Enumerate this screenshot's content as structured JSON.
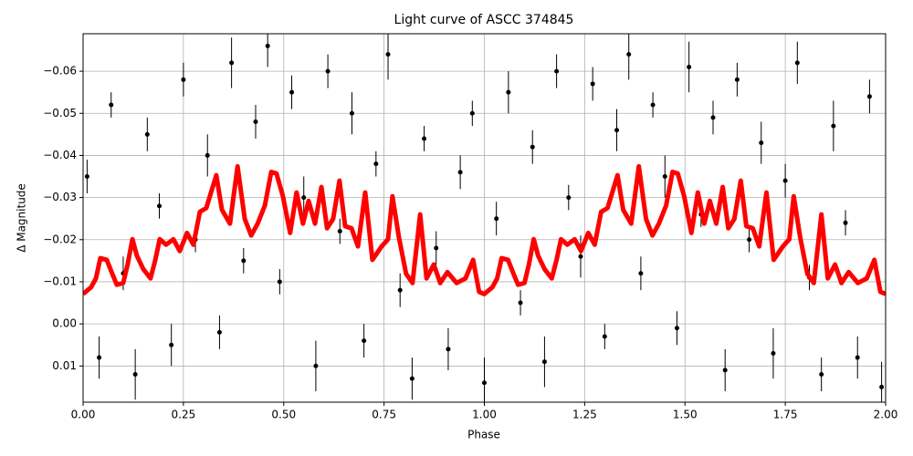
{
  "chart_data": {
    "type": "scatter",
    "title": "Light curve of ASCC 374845",
    "xlabel": "Phase",
    "ylabel": "Δ Magnitude",
    "xlim": [
      0,
      2
    ],
    "ylim": [
      0.0186,
      -0.0689
    ],
    "grid": true,
    "xticks": [
      {
        "value": 0,
        "label": "0.00"
      },
      {
        "value": 0.25,
        "label": "0.25"
      },
      {
        "value": 0.5,
        "label": "0.50"
      },
      {
        "value": 0.75,
        "label": "0.75"
      },
      {
        "value": 1,
        "label": "1.00"
      },
      {
        "value": 1.25,
        "label": "1.25"
      },
      {
        "value": 1.5,
        "label": "1.50"
      },
      {
        "value": 1.75,
        "label": "1.75"
      },
      {
        "value": 2,
        "label": "2.00"
      }
    ],
    "yticks": [
      {
        "value": 0.01,
        "label": "0.01"
      },
      {
        "value": 0,
        "label": "0.00"
      },
      {
        "value": -0.01,
        "label": "−0.01"
      },
      {
        "value": -0.02,
        "label": "−0.02"
      },
      {
        "value": -0.03,
        "label": "−0.03"
      },
      {
        "value": -0.04,
        "label": "−0.04"
      },
      {
        "value": -0.05,
        "label": "−0.05"
      },
      {
        "value": -0.06,
        "label": "−0.06"
      }
    ],
    "series": [
      {
        "type": "errorbar",
        "color": "#000000",
        "x": [
          0.01,
          0.04,
          0.07,
          0.1,
          0.13,
          0.16,
          0.19,
          0.22,
          0.25,
          0.28,
          0.31,
          0.34,
          0.37,
          0.4,
          0.43,
          0.46,
          0.49,
          0.52,
          0.55,
          0.58,
          0.61,
          0.64,
          0.67,
          0.7,
          0.73,
          0.76,
          0.79,
          0.82,
          0.85,
          0.88,
          0.91,
          0.94,
          0.97,
          1.0,
          1.03,
          1.06,
          1.09,
          1.12,
          1.15,
          1.18,
          1.21,
          1.24,
          1.27,
          1.3,
          1.33,
          1.36,
          1.39,
          1.42,
          1.45,
          1.48,
          1.51,
          1.54,
          1.57,
          1.6,
          1.63,
          1.66,
          1.69,
          1.72,
          1.75,
          1.78,
          1.81,
          1.84,
          1.87,
          1.9,
          1.93,
          1.96,
          1.99
        ],
        "values": [
          -0.035,
          0.008,
          -0.052,
          -0.012,
          0.012,
          -0.045,
          -0.028,
          0.005,
          -0.058,
          -0.02,
          -0.04,
          0.002,
          -0.062,
          -0.015,
          -0.048,
          -0.066,
          -0.01,
          -0.055,
          -0.03,
          0.01,
          -0.06,
          -0.022,
          -0.05,
          0.004,
          -0.038,
          -0.064,
          -0.008,
          0.013,
          -0.044,
          -0.018,
          0.006,
          -0.036,
          -0.05,
          0.014,
          -0.025,
          -0.055,
          -0.005,
          -0.042,
          0.009,
          -0.06,
          -0.03,
          -0.016,
          -0.057,
          0.003,
          -0.046,
          -0.064,
          -0.012,
          -0.052,
          -0.035,
          0.001,
          -0.061,
          -0.026,
          -0.049,
          0.011,
          -0.058,
          -0.02,
          -0.043,
          0.007,
          -0.034,
          -0.062,
          -0.011,
          0.012,
          -0.047,
          -0.024,
          0.008,
          -0.054,
          0.015
        ],
        "errors": [
          0.004,
          0.005,
          0.003,
          0.004,
          0.006,
          0.004,
          0.003,
          0.005,
          0.004,
          0.003,
          0.005,
          0.004,
          0.006,
          0.003,
          0.004,
          0.005,
          0.003,
          0.004,
          0.005,
          0.006,
          0.004,
          0.003,
          0.005,
          0.004,
          0.003,
          0.006,
          0.004,
          0.005,
          0.003,
          0.004,
          0.005,
          0.004,
          0.003,
          0.006,
          0.004,
          0.005,
          0.003,
          0.004,
          0.006,
          0.004,
          0.003,
          0.005,
          0.004,
          0.003,
          0.005,
          0.006,
          0.004,
          0.003,
          0.005,
          0.004,
          0.006,
          0.003,
          0.004,
          0.005,
          0.004,
          0.003,
          0.005,
          0.006,
          0.004,
          0.005,
          0.003,
          0.004,
          0.006,
          0.003,
          0.005,
          0.004,
          0.006
        ]
      },
      {
        "type": "line",
        "color": "#ff0000",
        "x": [
          0.0,
          0.02,
          0.032,
          0.043,
          0.059,
          0.071,
          0.084,
          0.1,
          0.111,
          0.123,
          0.134,
          0.15,
          0.168,
          0.18,
          0.191,
          0.207,
          0.225,
          0.241,
          0.259,
          0.275,
          0.291,
          0.307,
          0.332,
          0.346,
          0.366,
          0.385,
          0.403,
          0.419,
          0.435,
          0.453,
          0.469,
          0.482,
          0.498,
          0.516,
          0.532,
          0.548,
          0.562,
          0.578,
          0.594,
          0.608,
          0.623,
          0.639,
          0.653,
          0.669,
          0.685,
          0.703,
          0.721,
          0.744,
          0.76,
          0.771,
          0.787,
          0.805,
          0.821,
          0.84,
          0.856,
          0.874,
          0.89,
          0.908,
          0.931,
          0.953,
          0.972,
          0.987,
          0.999,
          1.0,
          1.02,
          1.032,
          1.043,
          1.059,
          1.071,
          1.084,
          1.1,
          1.111,
          1.123,
          1.134,
          1.15,
          1.168,
          1.18,
          1.191,
          1.207,
          1.225,
          1.241,
          1.259,
          1.275,
          1.291,
          1.307,
          1.332,
          1.346,
          1.366,
          1.385,
          1.403,
          1.419,
          1.435,
          1.453,
          1.469,
          1.482,
          1.498,
          1.516,
          1.532,
          1.548,
          1.562,
          1.578,
          1.594,
          1.608,
          1.623,
          1.639,
          1.653,
          1.669,
          1.685,
          1.703,
          1.721,
          1.744,
          1.76,
          1.771,
          1.787,
          1.805,
          1.821,
          1.84,
          1.856,
          1.874,
          1.89,
          1.908,
          1.931,
          1.953,
          1.972,
          1.987,
          2.0
        ],
        "values": [
          -0.0071,
          -0.0087,
          -0.0108,
          -0.0156,
          -0.0152,
          -0.0123,
          -0.0093,
          -0.0097,
          -0.0141,
          -0.0201,
          -0.0162,
          -0.013,
          -0.0108,
          -0.0152,
          -0.0201,
          -0.0188,
          -0.0201,
          -0.0173,
          -0.0216,
          -0.0188,
          -0.0266,
          -0.0275,
          -0.0353,
          -0.0271,
          -0.0238,
          -0.0374,
          -0.0249,
          -0.021,
          -0.0238,
          -0.0281,
          -0.0361,
          -0.0357,
          -0.0303,
          -0.0216,
          -0.0312,
          -0.0238,
          -0.0292,
          -0.0238,
          -0.0325,
          -0.0227,
          -0.0249,
          -0.034,
          -0.0232,
          -0.0227,
          -0.0184,
          -0.0312,
          -0.0152,
          -0.0184,
          -0.0201,
          -0.0303,
          -0.0206,
          -0.0119,
          -0.0097,
          -0.026,
          -0.0108,
          -0.0141,
          -0.0097,
          -0.0123,
          -0.0097,
          -0.0108,
          -0.0152,
          -0.0076,
          -0.0071,
          -0.0071,
          -0.0087,
          -0.0108,
          -0.0156,
          -0.0152,
          -0.0123,
          -0.0093,
          -0.0097,
          -0.0141,
          -0.0201,
          -0.0162,
          -0.013,
          -0.0108,
          -0.0152,
          -0.0201,
          -0.0188,
          -0.0201,
          -0.0173,
          -0.0216,
          -0.0188,
          -0.0266,
          -0.0275,
          -0.0353,
          -0.0271,
          -0.0238,
          -0.0374,
          -0.0249,
          -0.021,
          -0.0238,
          -0.0281,
          -0.0361,
          -0.0357,
          -0.0303,
          -0.0216,
          -0.0312,
          -0.0238,
          -0.0292,
          -0.0238,
          -0.0325,
          -0.0227,
          -0.0249,
          -0.034,
          -0.0232,
          -0.0227,
          -0.0184,
          -0.0312,
          -0.0152,
          -0.0184,
          -0.0201,
          -0.0303,
          -0.0206,
          -0.0119,
          -0.0097,
          -0.026,
          -0.0108,
          -0.0141,
          -0.0097,
          -0.0123,
          -0.0097,
          -0.0108,
          -0.0152,
          -0.0076,
          -0.0071
        ]
      }
    ]
  }
}
